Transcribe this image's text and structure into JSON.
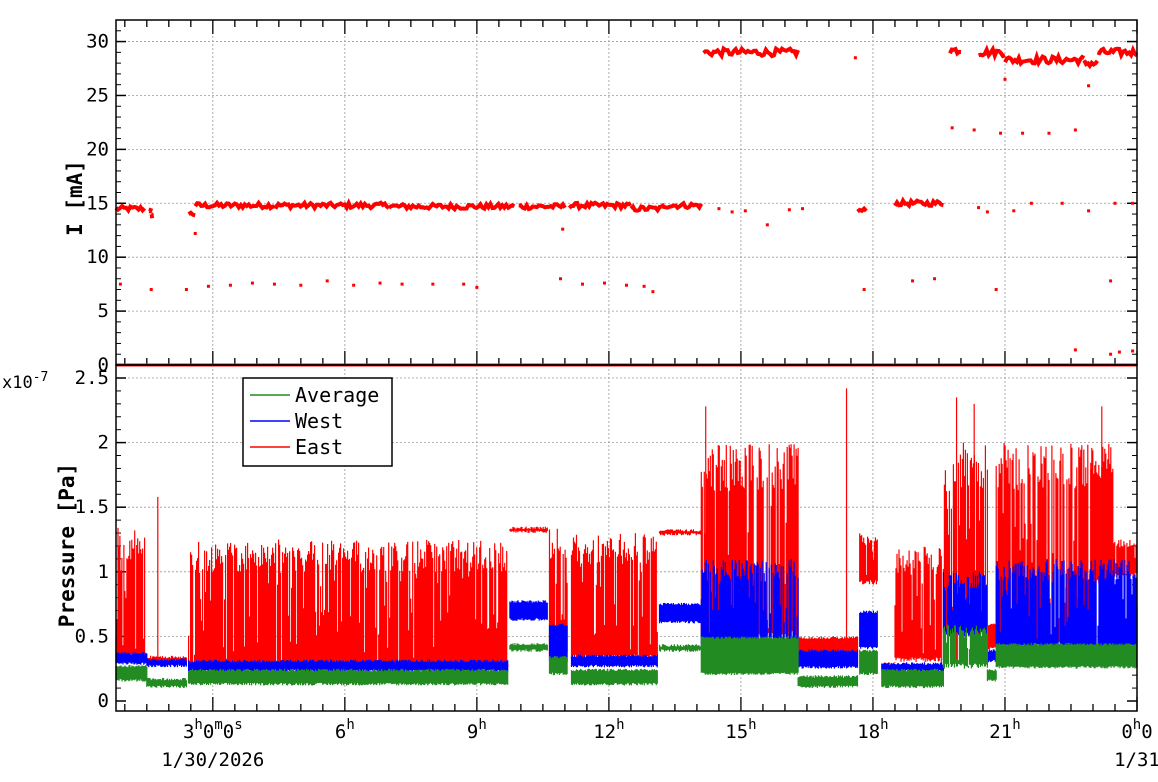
{
  "chart_data": [
    {
      "type": "scatter",
      "ylabel": "I [mA]",
      "ylim": [
        0,
        32
      ],
      "yticks": [
        "0",
        "5",
        "10",
        "15",
        "20",
        "25",
        "30"
      ],
      "grid": true,
      "x_range_hours": [
        0.8,
        24
      ],
      "series": [
        {
          "color": "#ff0000",
          "segments": [
            {
              "x0": 0.8,
              "x1": 1.45,
              "y": 14.5
            },
            {
              "x0": 1.55,
              "x1": 1.6,
              "y": 14.4
            },
            {
              "x0": 1.6,
              "x1": 1.62,
              "y": 13.8
            },
            {
              "x0": 2.45,
              "x1": 2.6,
              "y": 14.0
            },
            {
              "x0": 2.6,
              "x1": 4.4,
              "y": 14.8
            },
            {
              "x0": 4.4,
              "x1": 7.0,
              "y": 14.8
            },
            {
              "x0": 7.0,
              "x1": 9.85,
              "y": 14.7
            },
            {
              "x0": 9.95,
              "x1": 11.0,
              "y": 14.7
            },
            {
              "x0": 11.1,
              "x1": 12.5,
              "y": 14.8
            },
            {
              "x0": 12.5,
              "x1": 13.2,
              "y": 14.5
            },
            {
              "x0": 13.2,
              "x1": 14.1,
              "y": 14.8
            },
            {
              "x0": 14.15,
              "x1": 16.3,
              "y": 29.0
            },
            {
              "x0": 17.65,
              "x1": 17.85,
              "y": 14.3
            },
            {
              "x0": 18.5,
              "x1": 19.6,
              "y": 15.0
            },
            {
              "x0": 19.75,
              "x1": 20.0,
              "y": 29.2
            },
            {
              "x0": 20.4,
              "x1": 21.0,
              "y": 29.0
            },
            {
              "x0": 21.0,
              "x1": 22.8,
              "y": 28.3
            },
            {
              "x0": 22.8,
              "x1": 23.1,
              "y": 28.0
            },
            {
              "x0": 23.1,
              "x1": 24.0,
              "y": 29.0
            },
            {
              "x0": 0.8,
              "x1": 24.0,
              "y": 0.0
            }
          ],
          "points": [
            [
              0.9,
              7.5
            ],
            [
              1.6,
              7.0
            ],
            [
              2.4,
              7.0
            ],
            [
              2.9,
              7.3
            ],
            [
              3.4,
              7.4
            ],
            [
              3.9,
              7.6
            ],
            [
              4.4,
              7.5
            ],
            [
              5.0,
              7.4
            ],
            [
              5.6,
              7.8
            ],
            [
              6.2,
              7.4
            ],
            [
              6.8,
              7.6
            ],
            [
              7.3,
              7.5
            ],
            [
              8.0,
              7.5
            ],
            [
              8.7,
              7.5
            ],
            [
              9.0,
              7.2
            ],
            [
              10.9,
              8.0
            ],
            [
              11.4,
              7.5
            ],
            [
              11.9,
              7.6
            ],
            [
              12.4,
              7.4
            ],
            [
              12.8,
              7.3
            ],
            [
              13.0,
              6.8
            ],
            [
              10.95,
              12.6
            ],
            [
              2.6,
              12.2
            ],
            [
              14.5,
              14.5
            ],
            [
              14.8,
              14.2
            ],
            [
              15.1,
              14.3
            ],
            [
              15.6,
              13.0
            ],
            [
              16.1,
              14.4
            ],
            [
              16.4,
              14.5
            ],
            [
              17.6,
              28.5
            ],
            [
              17.8,
              7.0
            ],
            [
              18.9,
              7.8
            ],
            [
              19.4,
              8.0
            ],
            [
              19.8,
              22.0
            ],
            [
              20.4,
              14.6
            ],
            [
              20.9,
              21.5
            ],
            [
              20.3,
              21.8
            ],
            [
              21.4,
              21.5
            ],
            [
              22.0,
              21.5
            ],
            [
              22.6,
              21.8
            ],
            [
              20.6,
              14.2
            ],
            [
              21.2,
              14.3
            ],
            [
              21.6,
              15.0
            ],
            [
              22.3,
              15.0
            ],
            [
              22.9,
              14.3
            ],
            [
              23.5,
              15.0
            ],
            [
              23.9,
              15.0
            ],
            [
              23.4,
              7.8
            ],
            [
              20.8,
              7.0
            ],
            [
              21.0,
              26.5
            ],
            [
              22.9,
              25.9
            ],
            [
              22.6,
              1.4
            ],
            [
              23.4,
              1.0
            ],
            [
              23.6,
              1.2
            ],
            [
              23.9,
              1.3
            ]
          ]
        }
      ]
    },
    {
      "type": "line",
      "ylabel": "Pressure [Pa]",
      "y_exponent_label": "x10",
      "y_exponent_power": "-7",
      "ylim": [
        0,
        2.6
      ],
      "yticks": [
        "0",
        "0.5",
        "1",
        "1.5",
        "2",
        "2.5"
      ],
      "xticks": [
        {
          "hour": 3,
          "label": "3",
          "sup": "h",
          "extra": "0",
          "sup2": "m",
          "extra2": "0",
          "sup3": "s"
        },
        {
          "hour": 6,
          "label": "6",
          "sup": "h"
        },
        {
          "hour": 9,
          "label": "9",
          "sup": "h"
        },
        {
          "hour": 12,
          "label": "12",
          "sup": "h"
        },
        {
          "hour": 15,
          "label": "15",
          "sup": "h"
        },
        {
          "hour": 18,
          "label": "18",
          "sup": "h"
        },
        {
          "hour": 21,
          "label": "21",
          "sup": "h"
        },
        {
          "hour": 24,
          "label": "0",
          "sup": "h",
          "extra": "0"
        }
      ],
      "date_labels": [
        {
          "hour": 3,
          "text": "1/30/2026"
        },
        {
          "hour": 24,
          "text": "1/31"
        }
      ],
      "x_range_hours": [
        0.8,
        24
      ],
      "grid": true,
      "legend": {
        "position": "top-left",
        "entries": [
          {
            "name": "Average",
            "color": "#228b22"
          },
          {
            "name": "West",
            "color": "#0000ff"
          },
          {
            "name": "East",
            "color": "#ff0000"
          }
        ]
      },
      "series": [
        {
          "name": "East",
          "color": "#ff0000",
          "ranges": [
            {
              "x0": 0.8,
              "x1": 1.45,
              "low": 0.33,
              "high": 1.35
            },
            {
              "x0": 1.45,
              "x1": 2.4,
              "low": 0.28,
              "high": 0.35
            },
            {
              "x0": 2.45,
              "x1": 9.7,
              "low": 0.25,
              "high": 1.25
            },
            {
              "x0": 9.75,
              "x1": 10.6,
              "low": 1.3,
              "high": 1.35
            },
            {
              "x0": 10.65,
              "x1": 11.05,
              "low": 0.35,
              "high": 1.35
            },
            {
              "x0": 11.15,
              "x1": 13.1,
              "low": 0.32,
              "high": 1.3
            },
            {
              "x0": 13.15,
              "x1": 14.1,
              "low": 1.28,
              "high": 1.33
            },
            {
              "x0": 14.1,
              "x1": 16.3,
              "low": 0.5,
              "high": 2.0
            },
            {
              "x0": 16.3,
              "x1": 17.65,
              "low": 0.27,
              "high": 0.5
            },
            {
              "x0": 17.7,
              "x1": 18.1,
              "low": 0.9,
              "high": 1.3
            },
            {
              "x0": 18.2,
              "x1": 18.5,
              "low": 0.28,
              "high": 0.3
            },
            {
              "x0": 18.5,
              "x1": 19.6,
              "low": 0.3,
              "high": 1.2
            },
            {
              "x0": 19.6,
              "x1": 20.6,
              "low": 0.5,
              "high": 2.0
            },
            {
              "x0": 20.6,
              "x1": 20.8,
              "low": 0.4,
              "high": 0.6
            },
            {
              "x0": 20.8,
              "x1": 22.95,
              "low": 0.45,
              "high": 2.0
            },
            {
              "x0": 22.95,
              "x1": 23.45,
              "low": 0.9,
              "high": 2.0
            },
            {
              "x0": 23.45,
              "x1": 24.0,
              "low": 0.95,
              "high": 1.25
            }
          ],
          "spikes": [
            [
              1.75,
              1.58
            ],
            [
              17.4,
              2.42
            ],
            [
              14.2,
              2.28
            ],
            [
              19.9,
              2.35
            ],
            [
              20.3,
              2.3
            ],
            [
              23.2,
              2.28
            ]
          ]
        },
        {
          "name": "West",
          "color": "#0000ff",
          "ranges": [
            {
              "x0": 0.8,
              "x1": 1.5,
              "low": 0.28,
              "high": 0.38
            },
            {
              "x0": 1.5,
              "x1": 2.4,
              "low": 0.26,
              "high": 0.33
            },
            {
              "x0": 2.45,
              "x1": 9.7,
              "low": 0.22,
              "high": 0.32
            },
            {
              "x0": 9.75,
              "x1": 10.6,
              "low": 0.62,
              "high": 0.78
            },
            {
              "x0": 10.65,
              "x1": 11.05,
              "low": 0.3,
              "high": 0.6
            },
            {
              "x0": 11.15,
              "x1": 13.1,
              "low": 0.26,
              "high": 0.36
            },
            {
              "x0": 13.15,
              "x1": 14.1,
              "low": 0.6,
              "high": 0.76
            },
            {
              "x0": 14.1,
              "x1": 16.3,
              "low": 0.4,
              "high": 1.1
            },
            {
              "x0": 16.3,
              "x1": 17.65,
              "low": 0.25,
              "high": 0.4
            },
            {
              "x0": 17.7,
              "x1": 18.1,
              "low": 0.4,
              "high": 0.7
            },
            {
              "x0": 18.2,
              "x1": 19.6,
              "low": 0.22,
              "high": 0.3
            },
            {
              "x0": 19.6,
              "x1": 20.6,
              "low": 0.5,
              "high": 1.0
            },
            {
              "x0": 20.6,
              "x1": 20.8,
              "low": 0.3,
              "high": 0.4
            },
            {
              "x0": 20.8,
              "x1": 24.0,
              "low": 0.4,
              "high": 1.1
            }
          ]
        },
        {
          "name": "Average",
          "color": "#228b22",
          "ranges": [
            {
              "x0": 0.8,
              "x1": 1.5,
              "low": 0.15,
              "high": 0.28
            },
            {
              "x0": 1.5,
              "x1": 2.4,
              "low": 0.1,
              "high": 0.18
            },
            {
              "x0": 2.45,
              "x1": 9.7,
              "low": 0.12,
              "high": 0.25
            },
            {
              "x0": 9.75,
              "x1": 10.6,
              "low": 0.38,
              "high": 0.45
            },
            {
              "x0": 10.65,
              "x1": 11.05,
              "low": 0.2,
              "high": 0.35
            },
            {
              "x0": 11.15,
              "x1": 13.1,
              "low": 0.12,
              "high": 0.25
            },
            {
              "x0": 13.15,
              "x1": 14.1,
              "low": 0.38,
              "high": 0.44
            },
            {
              "x0": 14.1,
              "x1": 16.3,
              "low": 0.2,
              "high": 0.5
            },
            {
              "x0": 16.3,
              "x1": 17.65,
              "low": 0.1,
              "high": 0.2
            },
            {
              "x0": 17.7,
              "x1": 18.1,
              "low": 0.2,
              "high": 0.4
            },
            {
              "x0": 18.2,
              "x1": 19.6,
              "low": 0.1,
              "high": 0.25
            },
            {
              "x0": 19.6,
              "x1": 20.6,
              "low": 0.25,
              "high": 0.6
            },
            {
              "x0": 20.6,
              "x1": 20.8,
              "low": 0.15,
              "high": 0.25
            },
            {
              "x0": 20.8,
              "x1": 24.0,
              "low": 0.25,
              "high": 0.45
            }
          ]
        }
      ]
    }
  ]
}
